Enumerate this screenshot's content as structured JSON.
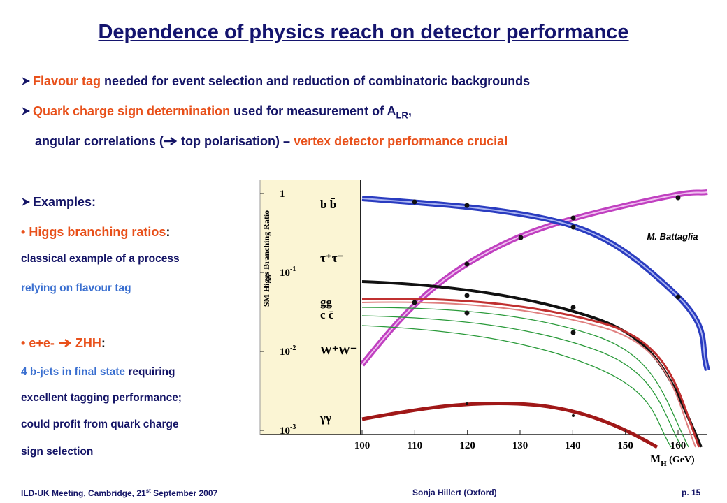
{
  "header": {
    "title": "Dependence of physics reach on detector performance"
  },
  "bullets": [
    {
      "parts": [
        "Flavour tag",
        " needed for event selection and reduction of combinatoric backgrounds"
      ]
    },
    {
      "parts": [
        "Quark charge sign determination",
        " used for measurement of A",
        "LR",
        ","
      ]
    },
    {
      "parts": [
        "angular correlations (",
        "top polarisation) – ",
        "vertex detector performance crucial"
      ]
    }
  ],
  "examples": {
    "heading": "Examples:",
    "items": [
      {
        "title": [
          "Higgs branching ratios",
          ":"
        ],
        "lines": [
          "classical example of a process",
          "relying on flavour tag"
        ]
      },
      {
        "title": [
          "e+e-",
          "ZHH",
          ":"
        ],
        "lines": [
          [
            "4 b-jets in final state",
            " requiring"
          ],
          "excellent tagging performance;",
          "could profit from quark charge",
          "sign selection"
        ]
      }
    ]
  },
  "figure": {
    "ylabel": "SM Higgs Branching Ratio",
    "yticks": [
      {
        "value": 1,
        "label": "1"
      },
      {
        "value": 0.1,
        "label": "10",
        "sup": "-1"
      },
      {
        "value": 0.01,
        "label": "10",
        "sup": "-2"
      },
      {
        "value": 0.001,
        "label": "10",
        "sup": "-3"
      }
    ],
    "xticks": [
      100,
      110,
      120,
      130,
      140,
      150,
      160
    ],
    "xlabel": [
      "M",
      "H",
      " (GeV)"
    ],
    "channels": [
      "b b̄",
      "τ⁺τ⁻",
      "gg",
      "c c̄",
      "W⁺W⁻",
      "γγ"
    ],
    "credit": "M. Battaglia"
  },
  "footer": {
    "left": [
      "ILD-UK Meeting, Cambridge, 21",
      "st",
      " September 2007"
    ],
    "center": "Sonja Hillert (Oxford)",
    "right": "p. 15"
  }
}
